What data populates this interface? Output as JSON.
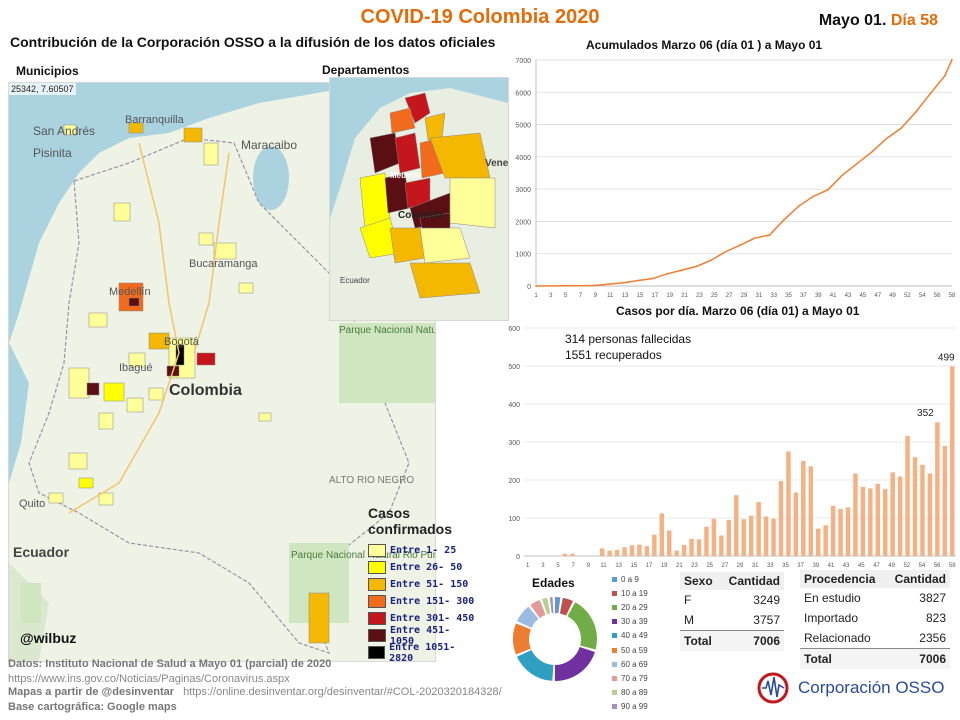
{
  "header": {
    "title": "COVID-19 Colombia 2020",
    "date": "Mayo 01.",
    "day": "Día 58",
    "subtitle": "Contribución de la Corporación OSSO a la difusión de los datos oficiales"
  },
  "maps": {
    "municipios_label": "Municipios",
    "departamentos_label": "Departamentos",
    "coords": "25342, 7.60507",
    "place_labels": {
      "san_andres": "San Andrés",
      "pisinita": "Pisinita",
      "barranquilla": "Barranquilla",
      "maracaibo": "Maracaibo",
      "bucaramanga": "Bucaramanga",
      "medellin": "Medellín",
      "bogota": "Bogotá",
      "ibague": "Ibagué",
      "colombia": "Colombia",
      "quito": "Quito",
      "ecuador": "Ecuador",
      "parque_natural_el_tuparro": "Parque Nacional Natural El Tuparro",
      "alto_rio_negro": "ALTO RIO NEGRO",
      "parque_natural_rio_puré": "Parque Nacional Natural Rio Puré",
      "dep_colombia": "Colombia",
      "dep_medellin": "Medellín",
      "dep_vene": "Vene",
      "dep_ecuador": "Ecuador"
    },
    "legend": {
      "title": "Casos confirmados",
      "items": [
        {
          "label": "Entre 1- 25",
          "color": "#ffff99"
        },
        {
          "label": "Entre 26- 50",
          "color": "#ffff00"
        },
        {
          "label": "Entre 51- 150",
          "color": "#f5b800"
        },
        {
          "label": "Entre 151- 300",
          "color": "#f26b1d"
        },
        {
          "label": "Entre 301- 450",
          "color": "#c4161c"
        },
        {
          "label": "Entre 451- 1050",
          "color": "#5a0f12"
        },
        {
          "label": "Entre 1051- 2820",
          "color": "#000000"
        }
      ]
    },
    "credit": "@wilbuz"
  },
  "chart_data": [
    {
      "type": "line",
      "title": "Acumulados  Marzo 06 (día 01 ) a Mayo 01",
      "ylim": [
        0,
        7000
      ],
      "yticks": [
        0,
        1000,
        2000,
        3000,
        4000,
        5000,
        6000,
        7000
      ],
      "xticks": [
        "1",
        "3",
        "5",
        "7",
        "9",
        "11",
        "13",
        "15",
        "17",
        "19",
        "21",
        "23",
        "25",
        "27",
        "29",
        "31",
        "33",
        "35",
        "37",
        "39",
        "41",
        "43",
        "45",
        "47",
        "49",
        "52",
        "54",
        "56",
        "58"
      ],
      "x": [
        1,
        3,
        5,
        7,
        9,
        11,
        13,
        15,
        17,
        19,
        21,
        23,
        25,
        27,
        29,
        31,
        33,
        35,
        37,
        39,
        41,
        43,
        45,
        47,
        49,
        51,
        53,
        55,
        57,
        58
      ],
      "values": [
        1,
        3,
        6,
        9,
        16,
        57,
        102,
        170,
        231,
        378,
        491,
        608,
        798,
        1065,
        1267,
        1485,
        1579,
        2054,
        2473,
        2776,
        2979,
        3439,
        3792,
        4149,
        4561,
        4881,
        5379,
        5949,
        6507,
        7006
      ],
      "series_color": "#ed7d31",
      "grid": true
    },
    {
      "type": "bar",
      "title": "Casos por día. Marzo 06 (día 01) a Mayo 01",
      "ylim": [
        0,
        600
      ],
      "yticks": [
        0,
        100,
        200,
        300,
        400,
        500,
        600
      ],
      "xticks": [
        "1",
        "3",
        "5",
        "7",
        "9",
        "11",
        "13",
        "15",
        "17",
        "19",
        "21",
        "23",
        "25",
        "27",
        "29",
        "31",
        "33",
        "35",
        "37",
        "39",
        "41",
        "43",
        "45",
        "47",
        "49",
        "52",
        "54",
        "56",
        "58"
      ],
      "x": [
        1,
        2,
        3,
        4,
        5,
        6,
        7,
        8,
        9,
        10,
        11,
        12,
        13,
        14,
        15,
        16,
        17,
        18,
        19,
        20,
        21,
        22,
        23,
        24,
        25,
        26,
        27,
        28,
        29,
        30,
        31,
        32,
        33,
        34,
        35,
        36,
        37,
        38,
        39,
        40,
        41,
        42,
        43,
        44,
        45,
        46,
        47,
        48,
        49,
        50,
        51,
        52,
        53,
        54,
        55,
        56,
        57,
        58
      ],
      "values": [
        1,
        0,
        0,
        0,
        0,
        6,
        6,
        0,
        0,
        0,
        20,
        14,
        16,
        23,
        28,
        30,
        26,
        56,
        112,
        67,
        14,
        29,
        45,
        44,
        77,
        98,
        54,
        95,
        160,
        97,
        106,
        142,
        104,
        98,
        197,
        275,
        167,
        250,
        236,
        72,
        81,
        132,
        124,
        128,
        217,
        182,
        178,
        190,
        176,
        220,
        209,
        316,
        260,
        240,
        217,
        352,
        290,
        499
      ],
      "series_color": "#f4b183",
      "annotations": [
        {
          "x": 56,
          "text": "352"
        },
        {
          "x": 58,
          "text": "499"
        }
      ],
      "notes": [
        "314 personas fallecidas",
        "1551 recuperados"
      ]
    },
    {
      "type": "pie",
      "title": "Edades",
      "categories": [
        "0 a 9",
        "10 a 19",
        "20 a 29",
        "30 a 39",
        "40 a 49",
        "50 a 59",
        "60 a 69",
        "70 a 79",
        "80 a 89",
        "90 a 99"
      ],
      "values": [
        3,
        5,
        22,
        21,
        18,
        13,
        8,
        5,
        3,
        2
      ],
      "colors": [
        "#5b9bd5",
        "#c0504d",
        "#70ad47",
        "#7030a0",
        "#2e9fc0",
        "#ed7d31",
        "#9bbbe3",
        "#e59a9a",
        "#b5cf92",
        "#a48fc2"
      ]
    }
  ],
  "tables": {
    "sexo": {
      "headers": [
        "Sexo",
        "Cantidad"
      ],
      "rows": [
        [
          "F",
          "3249"
        ],
        [
          "M",
          "3757"
        ]
      ],
      "total": [
        "Total",
        "7006"
      ]
    },
    "procedencia": {
      "headers": [
        "Procedencia",
        "Cantidad"
      ],
      "rows": [
        [
          "En estudio",
          "3827"
        ],
        [
          "Importado",
          "823"
        ],
        [
          "Relacionado",
          "2356"
        ]
      ],
      "total": [
        "Total",
        "7006"
      ]
    }
  },
  "footer": {
    "datos": "Datos: Instituto Nacional de Salud a Mayo 01  (parcial) de 2020",
    "datos_url": "https://www.ins.gov.co/Noticias/Paginas/Coronavirus.aspx",
    "mapas": "Mapas a partir de @desinventar",
    "mapas_url": "https://online.desinventar.org/desinventar/#COL-20203201843​28/",
    "base": "Base cartográfica: Google  maps",
    "org": "Corporación OSSO"
  }
}
